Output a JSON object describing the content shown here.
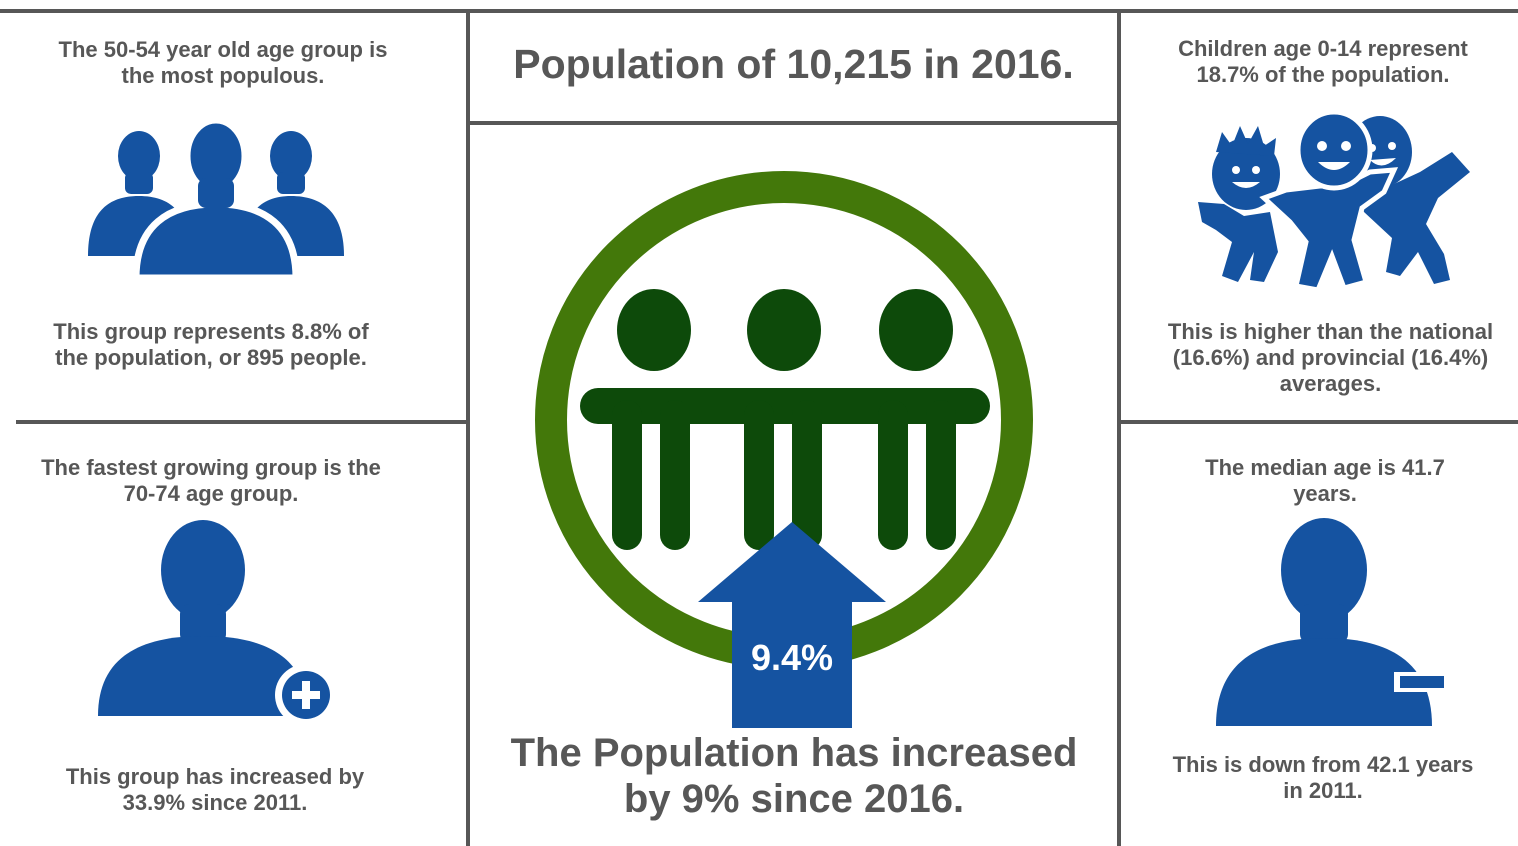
{
  "colors": {
    "text": "#575757",
    "blue": "#1553A1",
    "ring_green": "#43780A",
    "people_green": "#0D4A0A",
    "rule": "#575757"
  },
  "top_left": {
    "heading": "The 50-54 year old age group is the most populous.",
    "icon": "group-of-people-icon",
    "caption": "This group represents 8.8% of the population, or 895 people."
  },
  "bottom_left": {
    "heading": "The fastest growing group is the 70-74 age group.",
    "icon": "person-plus-icon",
    "caption": "This group has increased by 33.9% since 2011."
  },
  "center": {
    "title": "Population of 10,215 in 2016.",
    "icon": "community-circle-icon",
    "arrow_icon": "up-arrow-icon",
    "arrow_value": "9.4%",
    "headline": "The Population has increased by 9% since 2016."
  },
  "top_right": {
    "heading": "Children age 0-14 represent 18.7% of the population.",
    "icon": "happy-children-icon",
    "caption": "This is higher than the national (16.6%) and provincial (16.4%) averages."
  },
  "bottom_right": {
    "heading": "The median age is 41.7 years.",
    "icon": "person-minus-icon",
    "caption": "This is down from 42.1 years in 2011."
  }
}
